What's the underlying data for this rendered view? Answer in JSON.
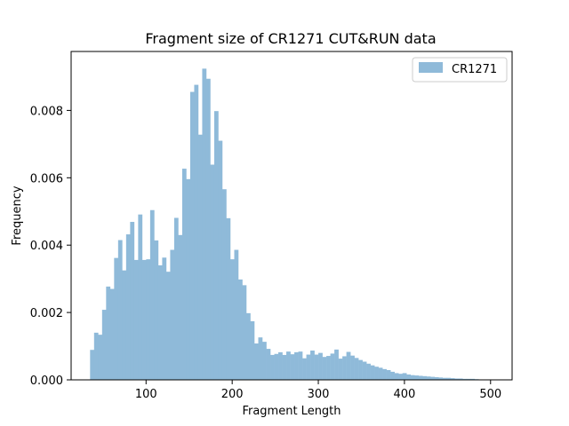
{
  "chart_data": {
    "type": "bar",
    "title": "Fragment size of CR1271 CUT&RUN data",
    "xlabel": "Fragment Length",
    "ylabel": "Frequency",
    "xlim": [
      13,
      525
    ],
    "ylim": [
      0,
      0.00975
    ],
    "xticks": [
      100,
      200,
      300,
      400,
      500
    ],
    "yticks": [
      0.0,
      0.002,
      0.004,
      0.006,
      0.008
    ],
    "ytick_labels": [
      "0.000",
      "0.002",
      "0.004",
      "0.006",
      "0.008"
    ],
    "grid": false,
    "legend_position": "top-right",
    "bin_width": 4.65,
    "bin_start": 35,
    "colors": {
      "bars": "#8fbad9",
      "legend_border": "#cccccc"
    },
    "series": [
      {
        "name": "CR1271",
        "values": [
          0.00089,
          0.0014,
          0.00134,
          0.00208,
          0.00277,
          0.0027,
          0.00362,
          0.00415,
          0.00325,
          0.00432,
          0.00469,
          0.00356,
          0.00491,
          0.00356,
          0.00358,
          0.00504,
          0.00414,
          0.0034,
          0.00363,
          0.00321,
          0.00386,
          0.00481,
          0.0043,
          0.00627,
          0.00596,
          0.00855,
          0.00876,
          0.00728,
          0.00924,
          0.00894,
          0.00639,
          0.00798,
          0.0071,
          0.00566,
          0.0048,
          0.00358,
          0.00386,
          0.00298,
          0.00281,
          0.00198,
          0.00174,
          0.00108,
          0.00126,
          0.00113,
          0.00092,
          0.00074,
          0.00077,
          0.00082,
          0.00074,
          0.00084,
          0.00076,
          0.00082,
          0.00084,
          0.00064,
          0.00075,
          0.00087,
          0.00075,
          0.0008,
          0.00068,
          0.00071,
          0.00078,
          0.0009,
          0.00063,
          0.0007,
          0.00083,
          0.00072,
          0.00065,
          0.00059,
          0.00054,
          0.00048,
          0.00043,
          0.00039,
          0.00036,
          0.00032,
          0.00029,
          0.00024,
          0.0002,
          0.00018,
          0.0002,
          0.00016,
          0.00014,
          0.00013,
          0.00012,
          0.00011,
          0.0001,
          9e-05,
          8e-05,
          7e-05,
          6e-05,
          6e-05,
          5e-05,
          4e-05,
          4e-05,
          3e-05,
          3e-05,
          3e-05,
          2e-05
        ]
      }
    ]
  }
}
